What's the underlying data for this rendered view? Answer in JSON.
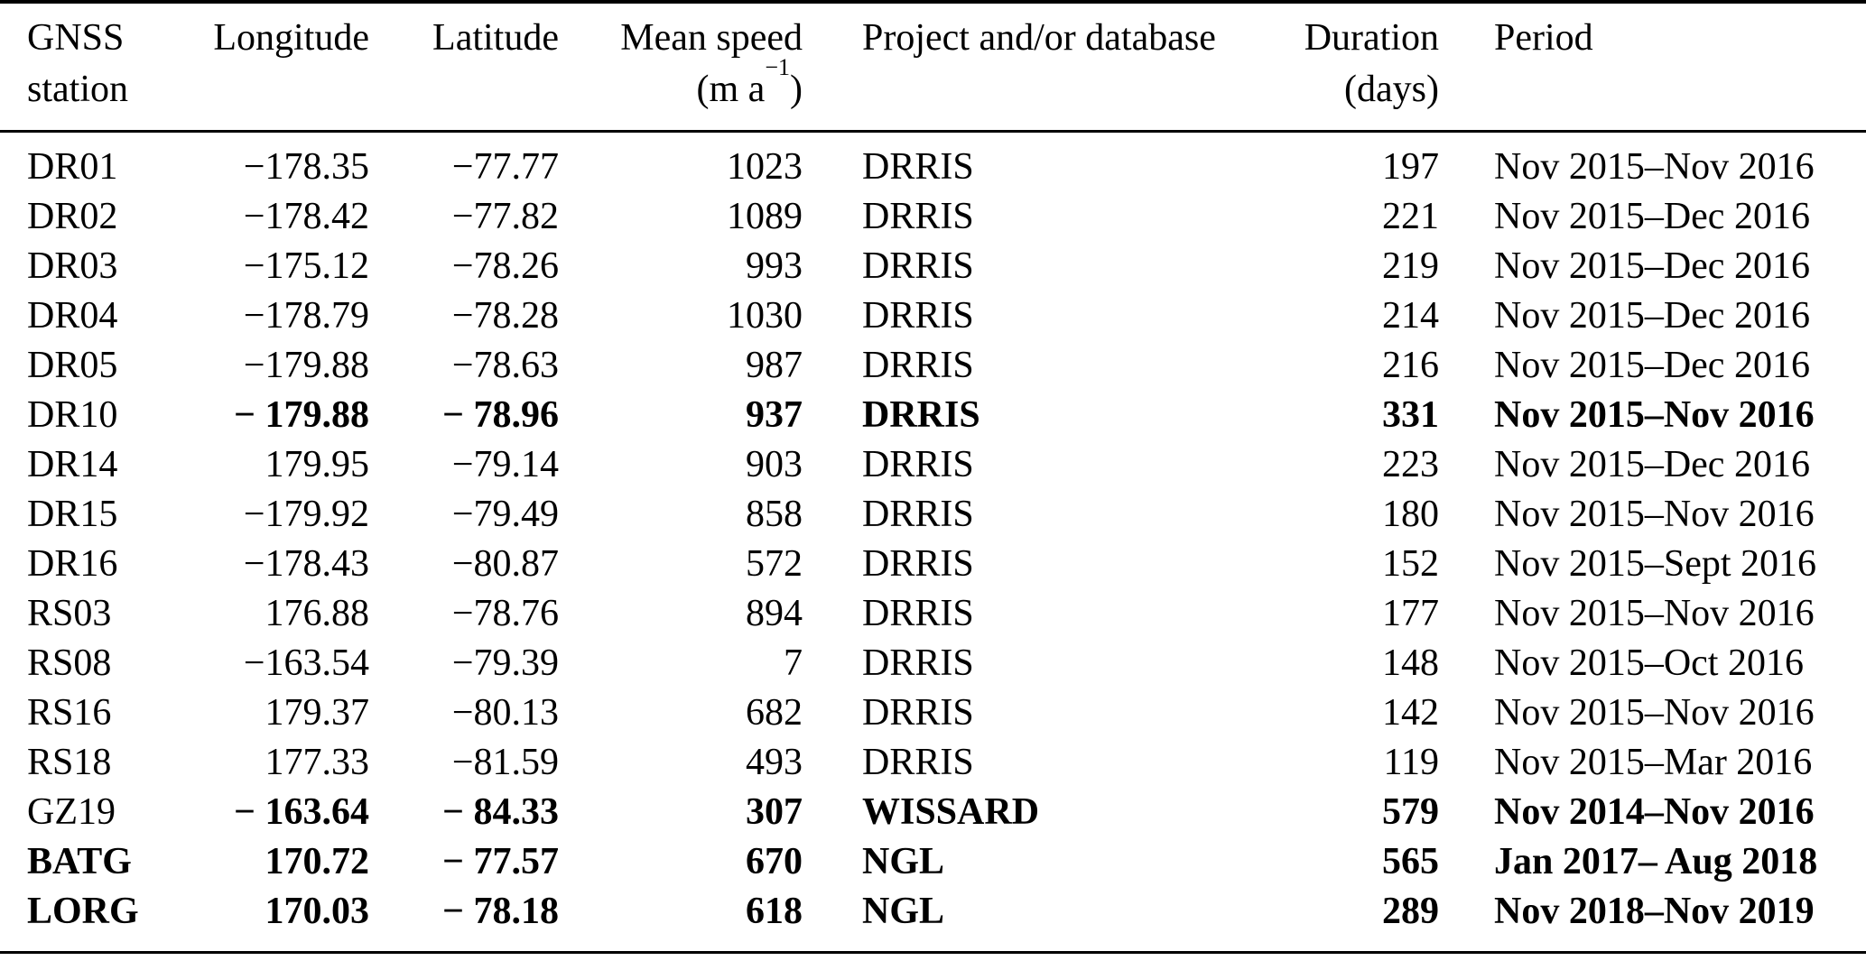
{
  "table": {
    "header": {
      "station": {
        "line1": "GNSS",
        "line2": "station"
      },
      "longitude": "Longitude",
      "latitude": "Latitude",
      "speed": {
        "line1": "Mean speed",
        "unit_pre": "(m a",
        "unit_sup": "−1",
        "unit_post": ")"
      },
      "project": "Project and/or database",
      "duration": {
        "line1": "Duration",
        "line2": "(days)"
      },
      "period": "Period"
    },
    "rows": [
      {
        "station": "DR01",
        "longitude": "−178.35",
        "latitude": "−77.77",
        "speed": "1023",
        "project": "DRRIS",
        "duration": "197",
        "period": "Nov 2015–Nov 2016",
        "station_bold": false,
        "values_bold": false
      },
      {
        "station": "DR02",
        "longitude": "−178.42",
        "latitude": "−77.82",
        "speed": "1089",
        "project": "DRRIS",
        "duration": "221",
        "period": "Nov 2015–Dec 2016",
        "station_bold": false,
        "values_bold": false
      },
      {
        "station": "DR03",
        "longitude": "−175.12",
        "latitude": "−78.26",
        "speed": "993",
        "project": "DRRIS",
        "duration": "219",
        "period": "Nov 2015–Dec 2016",
        "station_bold": false,
        "values_bold": false
      },
      {
        "station": "DR04",
        "longitude": "−178.79",
        "latitude": "−78.28",
        "speed": "1030",
        "project": "DRRIS",
        "duration": "214",
        "period": "Nov 2015–Dec 2016",
        "station_bold": false,
        "values_bold": false
      },
      {
        "station": "DR05",
        "longitude": "−179.88",
        "latitude": "−78.63",
        "speed": "987",
        "project": "DRRIS",
        "duration": "216",
        "period": "Nov 2015–Dec 2016",
        "station_bold": false,
        "values_bold": false
      },
      {
        "station": "DR10",
        "longitude": "− 179.88",
        "latitude": "− 78.96",
        "speed": "937",
        "project": "DRRIS",
        "duration": "331",
        "period": "Nov 2015–Nov 2016",
        "station_bold": false,
        "values_bold": true
      },
      {
        "station": "DR14",
        "longitude": "179.95",
        "latitude": "−79.14",
        "speed": "903",
        "project": "DRRIS",
        "duration": "223",
        "period": "Nov 2015–Dec 2016",
        "station_bold": false,
        "values_bold": false
      },
      {
        "station": "DR15",
        "longitude": "−179.92",
        "latitude": "−79.49",
        "speed": "858",
        "project": "DRRIS",
        "duration": "180",
        "period": "Nov 2015–Nov 2016",
        "station_bold": false,
        "values_bold": false
      },
      {
        "station": "DR16",
        "longitude": "−178.43",
        "latitude": "−80.87",
        "speed": "572",
        "project": "DRRIS",
        "duration": "152",
        "period": "Nov 2015–Sept 2016",
        "station_bold": false,
        "values_bold": false
      },
      {
        "station": "RS03",
        "longitude": "176.88",
        "latitude": "−78.76",
        "speed": "894",
        "project": "DRRIS",
        "duration": "177",
        "period": "Nov 2015–Nov 2016",
        "station_bold": false,
        "values_bold": false
      },
      {
        "station": "RS08",
        "longitude": "−163.54",
        "latitude": "−79.39",
        "speed": "7",
        "project": "DRRIS",
        "duration": "148",
        "period": "Nov 2015–Oct 2016",
        "station_bold": false,
        "values_bold": false
      },
      {
        "station": "RS16",
        "longitude": "179.37",
        "latitude": "−80.13",
        "speed": "682",
        "project": "DRRIS",
        "duration": "142",
        "period": "Nov 2015–Nov 2016",
        "station_bold": false,
        "values_bold": false
      },
      {
        "station": "RS18",
        "longitude": "177.33",
        "latitude": "−81.59",
        "speed": "493",
        "project": "DRRIS",
        "duration": "119",
        "period": "Nov 2015–Mar 2016",
        "station_bold": false,
        "values_bold": false
      },
      {
        "station": "GZ19",
        "longitude": "− 163.64",
        "latitude": "− 84.33",
        "speed": "307",
        "project": "WISSARD",
        "duration": "579",
        "period": "Nov 2014–Nov 2016",
        "station_bold": false,
        "values_bold": true
      },
      {
        "station": "BATG",
        "longitude": "170.72",
        "latitude": "− 77.57",
        "speed": "670",
        "project": "NGL",
        "duration": "565",
        "period": "Jan 2017– Aug 2018",
        "station_bold": true,
        "values_bold": true
      },
      {
        "station": "LORG",
        "longitude": "170.03",
        "latitude": "− 78.18",
        "speed": "618",
        "project": "NGL",
        "duration": "289",
        "period": "Nov 2018–Nov 2019",
        "station_bold": true,
        "values_bold": true
      }
    ]
  }
}
